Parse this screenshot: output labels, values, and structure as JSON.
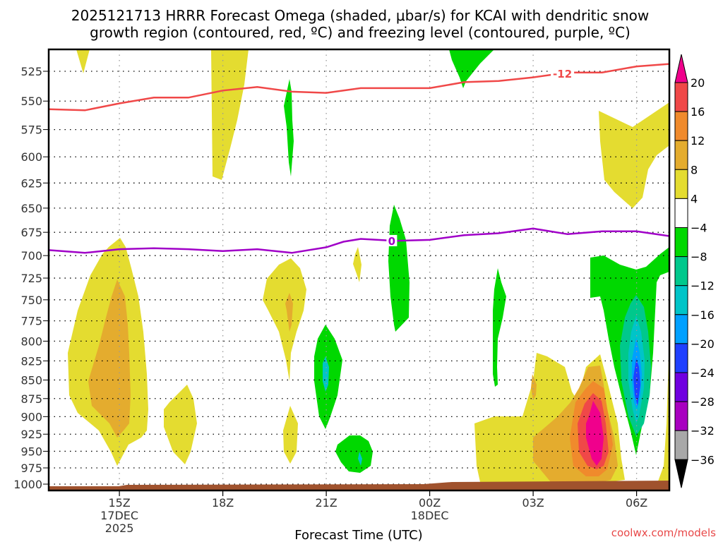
{
  "chart_data": {
    "type": "heatmap",
    "title_lines": [
      "2025121713 HRRR Forecast Omega (shaded, μbar/s) for KCAI with dendritic snow",
      "growth region (contoured, red, ºC) and freezing level (contoured, purple, ºC)"
    ],
    "xlabel": "Forecast Time (UTC)",
    "ylabel": "",
    "credit": "coolwx.com/models",
    "x_range_hours_from_15Z": [
      -2.05,
      15.95
    ],
    "x_ticks": [
      {
        "hour": 0,
        "lines": [
          "15Z",
          "17DEC",
          "2025"
        ]
      },
      {
        "hour": 3,
        "lines": [
          "18Z"
        ]
      },
      {
        "hour": 6,
        "lines": [
          "21Z"
        ]
      },
      {
        "hour": 9,
        "lines": [
          "00Z",
          "18DEC"
        ]
      },
      {
        "hour": 12,
        "lines": [
          "03Z"
        ]
      },
      {
        "hour": 15,
        "lines": [
          "06Z"
        ]
      }
    ],
    "y_axis": {
      "scale": "log-pressure",
      "range_hPa": [
        505,
        1010
      ],
      "inverted": true
    },
    "y_ticks": [
      525,
      550,
      575,
      600,
      625,
      650,
      675,
      700,
      725,
      750,
      775,
      800,
      825,
      850,
      875,
      900,
      925,
      950,
      975,
      1000
    ],
    "grid": true,
    "colorbar": {
      "position": "right",
      "levels": [
        20,
        16,
        12,
        8,
        4,
        -4,
        -8,
        -12,
        -16,
        -20,
        -24,
        -28,
        -32,
        -36
      ],
      "colors": [
        "#f04848",
        "#f08a2c",
        "#e4ac2e",
        "#e4dc30",
        "#ffffff",
        "#00d800",
        "#00c88c",
        "#00c4c8",
        "#00a0ff",
        "#2040ff",
        "#7000e0",
        "#a800c0",
        "#a8a8a8"
      ],
      "over_color": "#f0008c",
      "under_color": "#000000"
    },
    "contours": [
      {
        "name": "dendritic-growth-minus12C",
        "label": "-12",
        "color": "#f04848",
        "hour": [
          -2.05,
          -1,
          0,
          1,
          2,
          3,
          4,
          5,
          6,
          7,
          8,
          9,
          10,
          11,
          12,
          13,
          14,
          15,
          15.95
        ],
        "pressure_hPa": [
          557,
          558,
          552,
          547,
          547,
          541,
          538,
          542,
          543,
          539,
          539,
          539,
          534,
          533,
          530,
          526,
          526,
          521,
          519
        ],
        "label_at_hour": 12.85
      },
      {
        "name": "freezing-level-0C",
        "label": "0",
        "color": "#a000c8",
        "hour": [
          -2.05,
          -1,
          0,
          1,
          2,
          3,
          4,
          5,
          6,
          6.5,
          7,
          8,
          9,
          10,
          11,
          12,
          13,
          14,
          15,
          15.95
        ],
        "pressure_hPa": [
          694,
          697,
          693,
          692,
          693,
          695,
          693,
          697,
          691,
          685,
          682,
          684,
          683,
          678,
          676,
          671,
          677,
          674,
          674,
          679
        ],
        "label_at_hour": 7.9
      }
    ],
    "omega_regions_summary": [
      {
        "time": "14Z",
        "pressure_hPa": "505-520",
        "omega_range": "4 to 8"
      },
      {
        "time": "15Z",
        "pressure_hPa": "680-970",
        "omega_range": "4 to 12"
      },
      {
        "time": "16-17Z",
        "pressure_hPa": "865-960",
        "omega_range": "4 to 8"
      },
      {
        "time": "18Z",
        "pressure_hPa": "505-620",
        "omega_range": "4 to 8"
      },
      {
        "time": "20Z",
        "pressure_hPa": "530-615",
        "omega_range": "-8 to -4"
      },
      {
        "time": "20Z",
        "pressure_hPa": "705-855",
        "omega_range": "4 to 12"
      },
      {
        "time": "20Z",
        "pressure_hPa": "895-950",
        "omega_range": "4 to 8"
      },
      {
        "time": "21Z",
        "pressure_hPa": "780-920",
        "omega_range": "-12 to -4"
      },
      {
        "time": "22Z",
        "pressure_hPa": "905-965",
        "omega_range": "-12 to -4"
      },
      {
        "time": "23Z",
        "pressure_hPa": "700-730",
        "omega_range": "4 to 8"
      },
      {
        "time": "23-24Z",
        "pressure_hPa": "645-785",
        "omega_range": "-8 to -4"
      },
      {
        "time": "01Z",
        "pressure_hPa": "505-540",
        "omega_range": "-8 to -4"
      },
      {
        "time": "02Z",
        "pressure_hPa": "715-855",
        "omega_range": "-8 to -4"
      },
      {
        "time": "01-04Z",
        "pressure_hPa": "820-985",
        "omega_range": "4 to 12"
      },
      {
        "time": "05Z",
        "pressure_hPa": "830-980",
        "omega_range": "4 to >20"
      },
      {
        "time": "05-07Z",
        "pressure_hPa": "700-960",
        "omega_range": "-24 to -4"
      },
      {
        "time": "06-07Z",
        "pressure_hPa": "550-650",
        "omega_range": "4 to 8"
      },
      {
        "time": "07Z",
        "pressure_hPa": "790-985",
        "omega_range": "4 to 8"
      }
    ],
    "surface_color": "#a0522d"
  }
}
